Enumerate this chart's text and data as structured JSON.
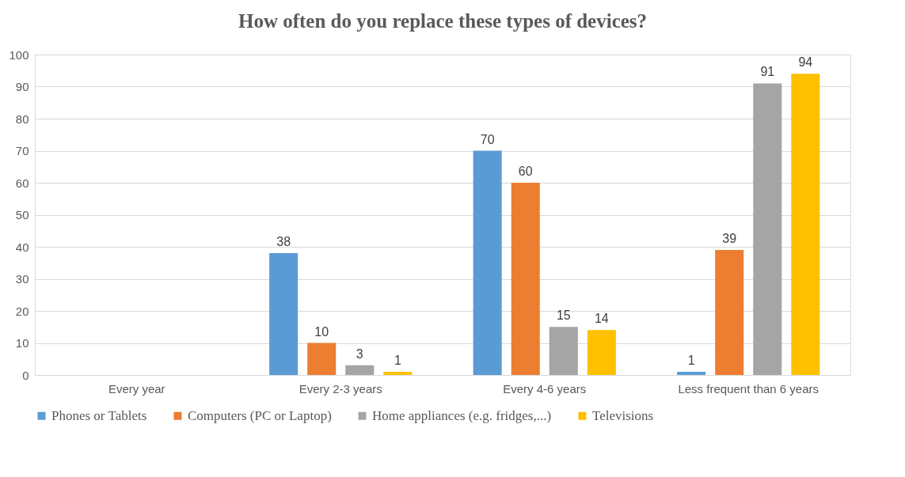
{
  "chart_data": {
    "type": "bar",
    "title": "How often do you replace these types of devices?",
    "categories": [
      "Every year",
      "Every 2-3 years",
      "Every 4-6 years",
      "Less frequent than 6 years"
    ],
    "series": [
      {
        "name": "Phones or Tablets",
        "color": "#5b9bd5",
        "values": [
          null,
          38,
          70,
          1
        ]
      },
      {
        "name": "Computers (PC or Laptop)",
        "color": "#ed7d31",
        "values": [
          null,
          10,
          60,
          39
        ]
      },
      {
        "name": "Home appliances (e.g. fridges,...)",
        "color": "#a5a5a5",
        "values": [
          null,
          3,
          15,
          91
        ]
      },
      {
        "name": "Televisions",
        "color": "#ffc000",
        "values": [
          null,
          1,
          14,
          94
        ]
      }
    ],
    "ylim": [
      0,
      100
    ],
    "yticks": [
      0,
      10,
      20,
      30,
      40,
      50,
      60,
      70,
      80,
      90,
      100
    ],
    "grid": "y",
    "legend": "bottom",
    "data_labels": true
  }
}
